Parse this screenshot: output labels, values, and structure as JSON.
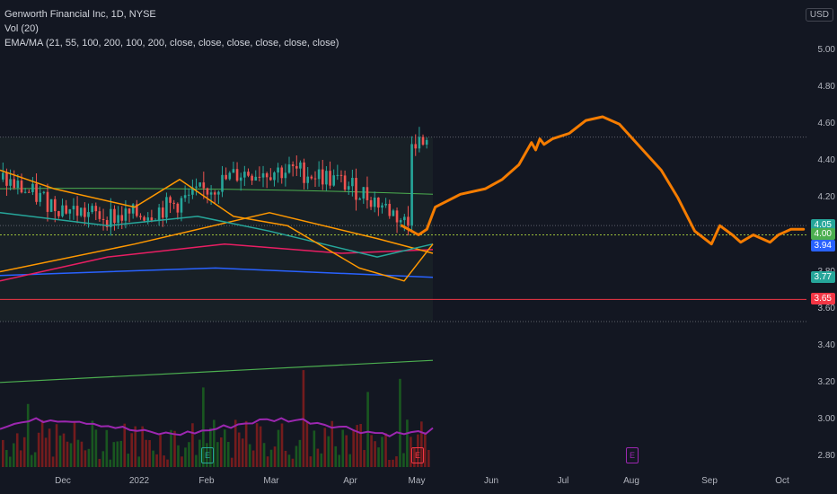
{
  "legend": {
    "title": "Genworth Financial Inc, 1D, NYSE",
    "vol": "Vol (20)",
    "ema": "EMA/MA (21, 55, 100, 200, 100, 200, close, close, close, close, close, close)"
  },
  "currency": "USD",
  "chart_data": {
    "type": "line",
    "yticks": [
      "5.00",
      "4.80",
      "4.60",
      "4.40",
      "4.20",
      "4.00",
      "3.80",
      "3.60",
      "3.40",
      "3.20",
      "3.00",
      "2.80"
    ],
    "ylim": [
      2.72,
      5.15
    ],
    "xticks": [
      "Dec",
      "2022",
      "Feb",
      "Mar",
      "Apr",
      "May",
      "Jun",
      "Jul",
      "Aug",
      "Sep",
      "Oct"
    ],
    "price_tags": [
      {
        "label": "4.05",
        "value": 4.05,
        "color": "#26a69a"
      },
      {
        "label": "4.00",
        "value": 4.0,
        "color": "#4caf50"
      },
      {
        "label": "3.94",
        "value": 3.94,
        "color": "#2962ff"
      },
      {
        "label": "3.77",
        "value": 3.77,
        "color": "#26a69a"
      },
      {
        "label": "3.65",
        "value": 3.65,
        "color": "#f23645"
      }
    ],
    "horizontal_levels": [
      {
        "value": 4.0,
        "color": "#9bbf3a",
        "style": "dotted"
      },
      {
        "value": 3.65,
        "color": "#f23645",
        "style": "solid"
      }
    ],
    "range_box": {
      "top": 4.53,
      "bottom": 3.53
    },
    "forecast_path": [
      [
        0.48,
        4.05
      ],
      [
        0.5,
        4.0
      ],
      [
        0.51,
        4.03
      ],
      [
        0.52,
        4.15
      ],
      [
        0.55,
        4.22
      ],
      [
        0.58,
        4.25
      ],
      [
        0.6,
        4.3
      ],
      [
        0.62,
        4.38
      ],
      [
        0.635,
        4.5
      ],
      [
        0.64,
        4.46
      ],
      [
        0.645,
        4.52
      ],
      [
        0.65,
        4.49
      ],
      [
        0.66,
        4.52
      ],
      [
        0.68,
        4.55
      ],
      [
        0.7,
        4.62
      ],
      [
        0.72,
        4.64
      ],
      [
        0.74,
        4.6
      ],
      [
        0.76,
        4.5
      ],
      [
        0.79,
        4.35
      ],
      [
        0.81,
        4.2
      ],
      [
        0.83,
        4.02
      ],
      [
        0.85,
        3.95
      ],
      [
        0.86,
        4.05
      ],
      [
        0.875,
        4.0
      ],
      [
        0.885,
        3.96
      ],
      [
        0.9,
        4.0
      ],
      [
        0.92,
        3.96
      ],
      [
        0.93,
        4.0
      ],
      [
        0.945,
        4.03
      ],
      [
        0.96,
        4.03
      ]
    ],
    "earnings_markers": [
      {
        "label": "E",
        "x": "Feb",
        "color": "#26a69a"
      },
      {
        "label": "E",
        "x": "May",
        "color": "#f23645"
      },
      {
        "label": "E",
        "x": "Aug",
        "color": "#9c27b0"
      }
    ]
  }
}
